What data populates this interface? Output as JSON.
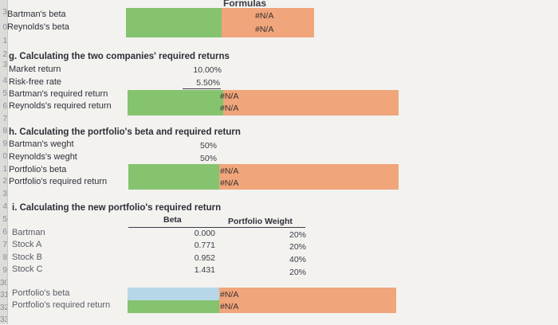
{
  "header": {
    "formulas_label": "Formulas"
  },
  "top": {
    "bartman_beta_label": "Bartman's beta",
    "reynolds_beta_label": "Reynolds's beta",
    "bartman_beta_value": "#N/A",
    "reynolds_beta_value": "#N/A"
  },
  "section_g": {
    "title": "g. Calculating the two companies' required returns",
    "market_return_label": "Market return",
    "market_return_value": "10.00%",
    "risk_free_label": "Risk-free rate",
    "risk_free_value": "5.50%",
    "bartman_req_label": "Bartman's required return",
    "reynolds_req_label": "Reynolds's required return",
    "bartman_req_value": "#N/A",
    "reynolds_req_value": "#N/A"
  },
  "section_h": {
    "title": "h. Calculating the portfolio's beta and required return",
    "bartman_weight_label": "Bartman's weght",
    "bartman_weight_value": "50%",
    "reynolds_weight_label": "Reynolds's weght",
    "reynolds_weight_value": "50%",
    "portfolio_beta_label": "Portfolio's beta",
    "portfolio_req_label": "Portfolio's required return",
    "portfolio_beta_value": "#N/A",
    "portfolio_req_value": "#N/A"
  },
  "section_i": {
    "title": "i. Calculating the new portfolio's required return",
    "col_beta": "Beta",
    "col_weight": "Portfolio Weight",
    "rows": [
      {
        "name": "Bartman",
        "beta": "0.000",
        "weight": "20%"
      },
      {
        "name": "Stock A",
        "beta": "0.771",
        "weight": "20%"
      },
      {
        "name": "Stock B",
        "beta": "0.952",
        "weight": "40%"
      },
      {
        "name": "Stock C",
        "beta": "1.431",
        "weight": "20%"
      }
    ],
    "portfolio_beta_label": "Portfolio's beta",
    "portfolio_req_label": "Portfolio's required return",
    "portfolio_beta_value": "#N/A",
    "portfolio_req_value": "#N/A"
  },
  "row_numbers": [
    "1",
    "2",
    "3",
    "4",
    "5",
    "6",
    "7",
    "8",
    "9",
    "0",
    "1",
    "2",
    "3",
    "4",
    "5",
    "6",
    "7",
    "8",
    "9",
    "30",
    "31",
    "32",
    "33"
  ],
  "colors": {
    "green": "#85c36f",
    "orange": "#f0a57b",
    "blue": "#b7d7e8"
  }
}
